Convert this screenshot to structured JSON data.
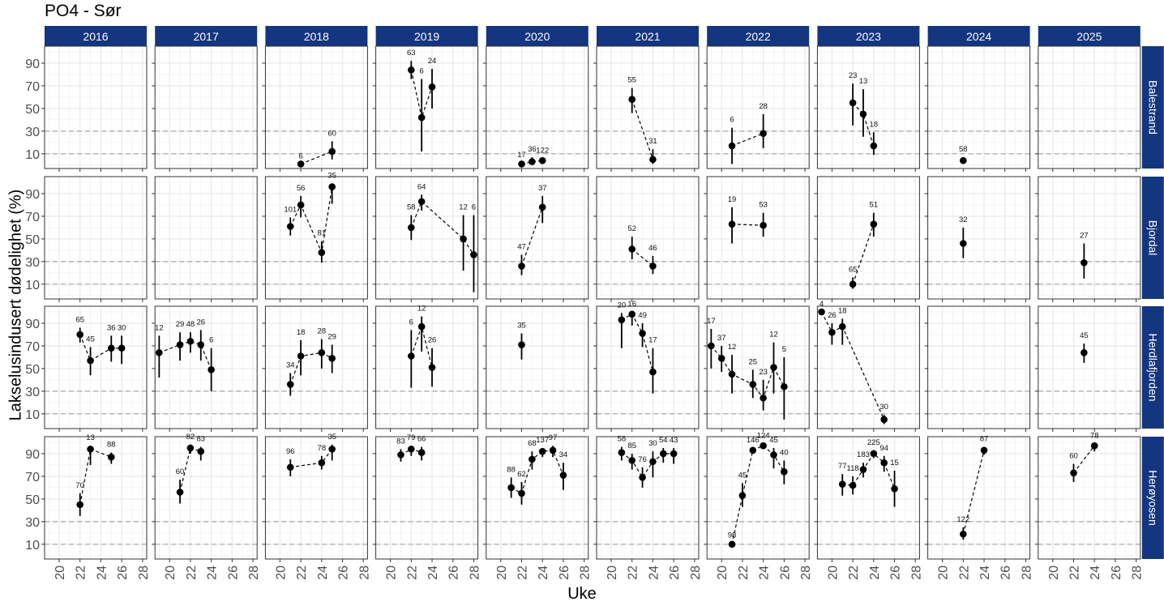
{
  "chart_data": {
    "type": "line",
    "title": "PO4 - Sør",
    "xlabel": "Uke",
    "ylabel": "Lakselusindusert dødelighet (%)",
    "x_ticks": [
      20,
      22,
      24,
      26,
      28
    ],
    "y_ticks": [
      10,
      30,
      50,
      70,
      90
    ],
    "xlim": [
      18.6,
      28.4
    ],
    "ylim": [
      -3,
      105
    ],
    "reference_lines": [
      10,
      30
    ],
    "grid": true,
    "facet_columns": [
      "2016",
      "2017",
      "2018",
      "2019",
      "2020",
      "2021",
      "2022",
      "2023",
      "2024",
      "2025"
    ],
    "facet_rows": [
      "Balestrand",
      "Bjordal",
      "Herdlafjorden",
      "Herøyosen"
    ],
    "strip_color": "#14357f",
    "panels": {
      "Balestrand": {
        "2016": [],
        "2017": [],
        "2018": [
          {
            "week": 22,
            "value": 1,
            "lo": 1,
            "hi": 1,
            "n": "6"
          },
          {
            "week": 25,
            "value": 12,
            "lo": 5,
            "hi": 21,
            "n": "60"
          }
        ],
        "2019": [
          {
            "week": 22,
            "value": 84,
            "lo": 76,
            "hi": 92,
            "n": "63"
          },
          {
            "week": 23,
            "value": 42,
            "lo": 12,
            "hi": 76,
            "n": "6"
          },
          {
            "week": 24,
            "value": 69,
            "lo": 50,
            "hi": 85,
            "n": "24"
          }
        ],
        "2020": [
          {
            "week": 22,
            "value": 1,
            "lo": 0,
            "hi": 2,
            "n": "17"
          },
          {
            "week": 23,
            "value": 3,
            "lo": 1,
            "hi": 7,
            "n": "36"
          },
          {
            "week": 24,
            "value": 4,
            "lo": 2,
            "hi": 6,
            "n": "122"
          }
        ],
        "2021": [
          {
            "week": 22,
            "value": 58,
            "lo": 46,
            "hi": 68,
            "n": "55"
          },
          {
            "week": 24,
            "value": 5,
            "lo": 1,
            "hi": 14,
            "n": "31"
          }
        ],
        "2022": [
          {
            "week": 21,
            "value": 17,
            "lo": 1,
            "hi": 33,
            "n": "6"
          },
          {
            "week": 24,
            "value": 28,
            "lo": 15,
            "hi": 45,
            "n": "28"
          }
        ],
        "2023": [
          {
            "week": 22,
            "value": 55,
            "lo": 35,
            "hi": 72,
            "n": "23"
          },
          {
            "week": 23,
            "value": 45,
            "lo": 25,
            "hi": 67,
            "n": "13"
          },
          {
            "week": 24,
            "value": 17,
            "lo": 9,
            "hi": 29,
            "n": "18"
          }
        ],
        "2024": [
          {
            "week": 22,
            "value": 4,
            "lo": 2,
            "hi": 7,
            "n": "58"
          }
        ],
        "2025": []
      },
      "Bjordal": {
        "2016": [],
        "2017": [],
        "2018": [
          {
            "week": 21,
            "value": 61,
            "lo": 53,
            "hi": 69,
            "n": "101"
          },
          {
            "week": 22,
            "value": 80,
            "lo": 69,
            "hi": 88,
            "n": "56"
          },
          {
            "week": 24,
            "value": 38,
            "lo": 29,
            "hi": 48,
            "n": "81"
          },
          {
            "week": 25,
            "value": 96,
            "lo": 81,
            "hi": 99,
            "n": "35"
          }
        ],
        "2019": [
          {
            "week": 22,
            "value": 60,
            "lo": 49,
            "hi": 71,
            "n": "58"
          },
          {
            "week": 23,
            "value": 83,
            "lo": 75,
            "hi": 89,
            "n": "64"
          },
          {
            "week": 27,
            "value": 50,
            "lo": 22,
            "hi": 71,
            "n": "12"
          },
          {
            "week": 28,
            "value": 36,
            "lo": 3,
            "hi": 71,
            "n": "6"
          }
        ],
        "2020": [
          {
            "week": 22,
            "value": 26,
            "lo": 18,
            "hi": 36,
            "n": "47"
          },
          {
            "week": 24,
            "value": 78,
            "lo": 64,
            "hi": 88,
            "n": "37"
          }
        ],
        "2021": [
          {
            "week": 22,
            "value": 41,
            "lo": 32,
            "hi": 52,
            "n": "52"
          },
          {
            "week": 24,
            "value": 26,
            "lo": 19,
            "hi": 35,
            "n": "46"
          }
        ],
        "2022": [
          {
            "week": 21,
            "value": 63,
            "lo": 46,
            "hi": 78,
            "n": "19"
          },
          {
            "week": 24,
            "value": 62,
            "lo": 52,
            "hi": 73,
            "n": "53"
          }
        ],
        "2023": [
          {
            "week": 22,
            "value": 10,
            "lo": 6,
            "hi": 16,
            "n": "65"
          },
          {
            "week": 24,
            "value": 63,
            "lo": 52,
            "hi": 73,
            "n": "51"
          }
        ],
        "2024": [
          {
            "week": 22,
            "value": 46,
            "lo": 33,
            "hi": 60,
            "n": "32"
          }
        ],
        "2025": [
          {
            "week": 23,
            "value": 29,
            "lo": 15,
            "hi": 46,
            "n": "27"
          }
        ]
      },
      "Herdlafjorden": {
        "2016": [
          {
            "week": 22,
            "value": 80,
            "lo": 73,
            "hi": 86,
            "n": "65"
          },
          {
            "week": 23,
            "value": 57,
            "lo": 44,
            "hi": 69,
            "n": "45"
          },
          {
            "week": 25,
            "value": 68,
            "lo": 56,
            "hi": 79,
            "n": "36"
          },
          {
            "week": 26,
            "value": 68,
            "lo": 54,
            "hi": 79,
            "n": "30"
          }
        ],
        "2017": [
          {
            "week": 19,
            "value": 64,
            "lo": 42,
            "hi": 79,
            "n": "12"
          },
          {
            "week": 21,
            "value": 71,
            "lo": 57,
            "hi": 82,
            "n": "29"
          },
          {
            "week": 22,
            "value": 74,
            "lo": 64,
            "hi": 82,
            "n": "48"
          },
          {
            "week": 23,
            "value": 71,
            "lo": 57,
            "hi": 84,
            "n": "26"
          },
          {
            "week": 24,
            "value": 49,
            "lo": 30,
            "hi": 68,
            "n": "6"
          }
        ],
        "2018": [
          {
            "week": 21,
            "value": 36,
            "lo": 26,
            "hi": 46,
            "n": "34"
          },
          {
            "week": 22,
            "value": 61,
            "lo": 44,
            "hi": 75,
            "n": "18"
          },
          {
            "week": 24,
            "value": 64,
            "lo": 50,
            "hi": 76,
            "n": "28"
          },
          {
            "week": 25,
            "value": 59,
            "lo": 46,
            "hi": 71,
            "n": "29"
          }
        ],
        "2019": [
          {
            "week": 22,
            "value": 61,
            "lo": 33,
            "hi": 84,
            "n": "6"
          },
          {
            "week": 23,
            "value": 87,
            "lo": 65,
            "hi": 96,
            "n": "12"
          },
          {
            "week": 24,
            "value": 51,
            "lo": 34,
            "hi": 68,
            "n": "26"
          }
        ],
        "2020": [
          {
            "week": 22,
            "value": 71,
            "lo": 58,
            "hi": 81,
            "n": "35"
          }
        ],
        "2021": [
          {
            "week": 21,
            "value": 93,
            "lo": 68,
            "hi": 99,
            "n": "20"
          },
          {
            "week": 22,
            "value": 98,
            "lo": 88,
            "hi": 100,
            "n": "16"
          },
          {
            "week": 23,
            "value": 81,
            "lo": 69,
            "hi": 90,
            "n": "49"
          },
          {
            "week": 24,
            "value": 47,
            "lo": 28,
            "hi": 68,
            "n": "17"
          }
        ],
        "2022": [
          {
            "week": 19,
            "value": 70,
            "lo": 50,
            "hi": 85,
            "n": "17"
          },
          {
            "week": 20,
            "value": 59,
            "lo": 47,
            "hi": 70,
            "n": "37"
          },
          {
            "week": 21,
            "value": 45,
            "lo": 28,
            "hi": 62,
            "n": "12"
          },
          {
            "week": 23,
            "value": 36,
            "lo": 24,
            "hi": 49,
            "n": "25"
          },
          {
            "week": 24,
            "value": 24,
            "lo": 13,
            "hi": 40,
            "n": "23"
          },
          {
            "week": 25,
            "value": 51,
            "lo": 28,
            "hi": 73,
            "n": "12"
          },
          {
            "week": 26,
            "value": 34,
            "lo": 5,
            "hi": 60,
            "n": "5"
          }
        ],
        "2023": [
          {
            "week": 19,
            "value": 100,
            "lo": 100,
            "hi": 100,
            "n": "4"
          },
          {
            "week": 20,
            "value": 82,
            "lo": 71,
            "hi": 90,
            "n": "26"
          },
          {
            "week": 21,
            "value": 87,
            "lo": 71,
            "hi": 94,
            "n": "18"
          },
          {
            "week": 25,
            "value": 5,
            "lo": 1,
            "hi": 9,
            "n": "30"
          }
        ],
        "2024": [],
        "2025": [
          {
            "week": 23,
            "value": 64,
            "lo": 55,
            "hi": 72,
            "n": "45"
          }
        ]
      },
      "Herøyosen": {
        "2016": [
          {
            "week": 22,
            "value": 45,
            "lo": 35,
            "hi": 55,
            "n": "70"
          },
          {
            "week": 23,
            "value": 94,
            "lo": 80,
            "hi": 97,
            "n": "13"
          },
          {
            "week": 25,
            "value": 87,
            "lo": 81,
            "hi": 91,
            "n": "88"
          }
        ],
        "2017": [
          {
            "week": 21,
            "value": 56,
            "lo": 46,
            "hi": 67,
            "n": "60"
          },
          {
            "week": 22,
            "value": 95,
            "lo": 90,
            "hi": 98,
            "n": "82"
          },
          {
            "week": 23,
            "value": 92,
            "lo": 84,
            "hi": 96,
            "n": "83"
          }
        ],
        "2018": [
          {
            "week": 21,
            "value": 78,
            "lo": 70,
            "hi": 85,
            "n": "96"
          },
          {
            "week": 24,
            "value": 82,
            "lo": 76,
            "hi": 88,
            "n": "78"
          },
          {
            "week": 25,
            "value": 94,
            "lo": 84,
            "hi": 98,
            "n": "35"
          }
        ],
        "2019": [
          {
            "week": 21,
            "value": 89,
            "lo": 83,
            "hi": 94,
            "n": "83"
          },
          {
            "week": 22,
            "value": 94,
            "lo": 88,
            "hi": 97,
            "n": "79"
          },
          {
            "week": 23,
            "value": 91,
            "lo": 84,
            "hi": 96,
            "n": "66"
          }
        ],
        "2020": [
          {
            "week": 21,
            "value": 60,
            "lo": 51,
            "hi": 69,
            "n": "88"
          },
          {
            "week": 22,
            "value": 55,
            "lo": 45,
            "hi": 65,
            "n": "62"
          },
          {
            "week": 23,
            "value": 85,
            "lo": 76,
            "hi": 92,
            "n": "68"
          },
          {
            "week": 24,
            "value": 92,
            "lo": 87,
            "hi": 95,
            "n": "137"
          },
          {
            "week": 25,
            "value": 93,
            "lo": 87,
            "hi": 97,
            "n": "97"
          },
          {
            "week": 26,
            "value": 71,
            "lo": 58,
            "hi": 82,
            "n": "34"
          }
        ],
        "2021": [
          {
            "week": 21,
            "value": 91,
            "lo": 84,
            "hi": 96,
            "n": "58"
          },
          {
            "week": 22,
            "value": 84,
            "lo": 76,
            "hi": 90,
            "n": "85"
          },
          {
            "week": 23,
            "value": 69,
            "lo": 60,
            "hi": 78,
            "n": "76"
          },
          {
            "week": 24,
            "value": 83,
            "lo": 69,
            "hi": 92,
            "n": "30"
          },
          {
            "week": 25,
            "value": 90,
            "lo": 82,
            "hi": 95,
            "n": "54"
          },
          {
            "week": 26,
            "value": 90,
            "lo": 81,
            "hi": 95,
            "n": "43"
          }
        ],
        "2022": [
          {
            "week": 21,
            "value": 10,
            "lo": 9,
            "hi": 11,
            "n": "98"
          },
          {
            "week": 22,
            "value": 53,
            "lo": 43,
            "hi": 64,
            "n": "45"
          },
          {
            "week": 23,
            "value": 93,
            "lo": 91,
            "hi": 95,
            "n": "146"
          },
          {
            "week": 24,
            "value": 97,
            "lo": 94,
            "hi": 99,
            "n": "124"
          },
          {
            "week": 25,
            "value": 89,
            "lo": 77,
            "hi": 95,
            "n": "45"
          },
          {
            "week": 26,
            "value": 74,
            "lo": 63,
            "hi": 84,
            "n": "40"
          }
        ],
        "2023": [
          {
            "week": 21,
            "value": 63,
            "lo": 53,
            "hi": 72,
            "n": "77"
          },
          {
            "week": 22,
            "value": 62,
            "lo": 54,
            "hi": 70,
            "n": "118"
          },
          {
            "week": 23,
            "value": 76,
            "lo": 69,
            "hi": 82,
            "n": "183"
          },
          {
            "week": 24,
            "value": 90,
            "lo": 86,
            "hi": 93,
            "n": "225"
          },
          {
            "week": 25,
            "value": 82,
            "lo": 74,
            "hi": 88,
            "n": "94"
          },
          {
            "week": 26,
            "value": 59,
            "lo": 43,
            "hi": 75,
            "n": "15"
          }
        ],
        "2024": [
          {
            "week": 22,
            "value": 19,
            "lo": 14,
            "hi": 25,
            "n": "122"
          },
          {
            "week": 24,
            "value": 93,
            "lo": 89,
            "hi": 96,
            "n": "87"
          }
        ],
        "2025": [
          {
            "week": 22,
            "value": 73,
            "lo": 65,
            "hi": 81,
            "n": "60"
          },
          {
            "week": 24,
            "value": 97,
            "lo": 92,
            "hi": 99,
            "n": "78"
          }
        ]
      }
    }
  }
}
